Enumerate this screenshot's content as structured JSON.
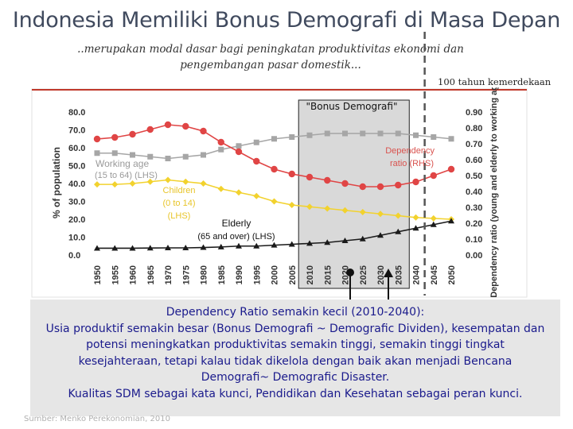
{
  "slide": {
    "title": "Indonesia Memiliki Bonus Demografi di Masa Depan",
    "subtitle_line1": "..merupakan modal dasar bagi peningkatan produktivitas ekonomi dan",
    "subtitle_line2": "pengembangan pasar domestik...",
    "milestone_label": "100 tahun kemerdekaan",
    "conclusion": {
      "line1": "Dependency Ratio semakin kecil (2010-2040):",
      "line2": "Usia produktif semakin besar (Bonus Demografi ~ Demografic Dividen), kesempatan dan",
      "line3": "potensi meningkatkan produktivitas semakin tinggi, semakin tinggi tingkat",
      "line4": "kesejahteraan, tetapi kalau tidak dikelola dengan baik akan menjadi Bencana",
      "line5": "Demografi~ Demografic Disaster.",
      "line6": "Kualitas SDM sebagai kata kunci, Pendidikan dan Kesehatan sebagai peran kunci."
    },
    "source": "Sumber: Menko Perekonomian, 2010"
  },
  "colors": {
    "working_age": "#a6a6a6",
    "children": "#f2d22e",
    "elderly": "#1a1a1a",
    "dependency": "#e04545",
    "bonus_band": "#d9d9d9",
    "milestone_line": "#555555",
    "text_blue": "#1a1a8c"
  },
  "chart_data": {
    "type": "line",
    "x": [
      "1950",
      "1955",
      "1960",
      "1965",
      "1970",
      "1975",
      "1980",
      "1985",
      "1990",
      "1995",
      "2000",
      "2005",
      "2010",
      "2015",
      "2020",
      "2025",
      "2030",
      "2035",
      "2040",
      "2045",
      "2050"
    ],
    "left_axis": {
      "label": "% of population",
      "ylim": [
        0,
        80
      ],
      "ticks": [
        "0.0",
        "10.0",
        "20.0",
        "30.0",
        "40.0",
        "50.0",
        "60.0",
        "70.0",
        "80.0"
      ]
    },
    "right_axis": {
      "label": "Dependency ratio (young and elderly to working age)",
      "ylim": [
        0,
        0.9
      ],
      "ticks": [
        "0.00",
        "0.10",
        "0.20",
        "0.30",
        "0.40",
        "0.50",
        "0.60",
        "0.70",
        "0.80",
        "0.90"
      ]
    },
    "series": [
      {
        "name": "Working age (15 to 64) (LHS)",
        "axis": "left",
        "color_key": "working_age",
        "marker": "square",
        "values": [
          57,
          57,
          56,
          55,
          54,
          55,
          56,
          59,
          61,
          63,
          65,
          66,
          67,
          68,
          68,
          68,
          68,
          68,
          67,
          66,
          65
        ]
      },
      {
        "name": "Children (0 to 14) (LHS)",
        "axis": "left",
        "color_key": "children",
        "marker": "diamond",
        "values": [
          39.5,
          39.5,
          40,
          41,
          42,
          41,
          40,
          37,
          35,
          33,
          30,
          28,
          27,
          26,
          25,
          24,
          23,
          22,
          21,
          20.5,
          20
        ]
      },
      {
        "name": "Elderly (65 and over) (LHS)",
        "axis": "left",
        "color_key": "elderly",
        "marker": "triangle",
        "values": [
          3.8,
          3.8,
          3.8,
          3.9,
          4,
          4,
          4.2,
          4.5,
          5,
          5,
          5.5,
          6,
          6.5,
          7,
          8,
          9,
          11,
          13,
          15,
          17,
          19
        ]
      },
      {
        "name": "Dependency ratio (RHS)",
        "axis": "right",
        "color_key": "dependency",
        "marker": "circle",
        "values": [
          0.73,
          0.74,
          0.76,
          0.79,
          0.82,
          0.81,
          0.78,
          0.71,
          0.65,
          0.59,
          0.54,
          0.51,
          0.49,
          0.47,
          0.45,
          0.43,
          0.43,
          0.44,
          0.46,
          0.5,
          0.54
        ]
      }
    ],
    "annotations": {
      "bonus": "\"Bonus Demografi\"",
      "working_age_1": "Working age",
      "working_age_2": "(15 to 64) (LHS)",
      "children_1": "Children",
      "children_2": "(0 to 14)",
      "children_3": "(LHS)",
      "elderly_1": "Elderly",
      "elderly_2": "(65 and over) (LHS)",
      "dependency_1": "Dependency",
      "dependency_2": "ratio (RHS)"
    },
    "bonus_range": [
      "2010",
      "2035"
    ],
    "milestone_year": "2045",
    "grid": false,
    "legend": "none (inline labels)"
  }
}
